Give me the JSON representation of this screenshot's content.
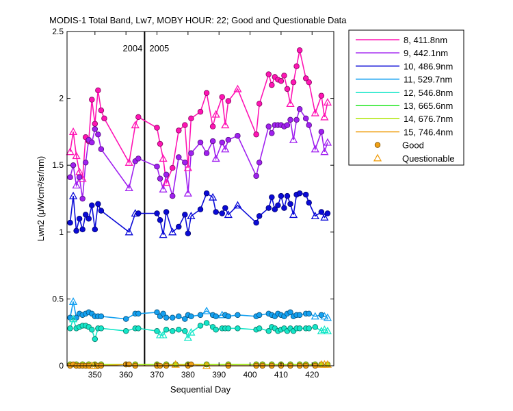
{
  "chart_data": {
    "type": "line",
    "title": "MODIS-1 Total Band, Lw7, MOBY HOUR: 22;  Good and Questionable Data",
    "xlabel": "Sequential Day",
    "ylabel": "Lwn2 (μW/cm²/sr/nm)",
    "xlim": [
      341,
      427
    ],
    "ylim": [
      0,
      2.5
    ],
    "xticks": [
      350,
      360,
      370,
      380,
      390,
      400,
      410,
      420
    ],
    "yticks": [
      0,
      0.5,
      1,
      1.5,
      2,
      2.5
    ],
    "ytick_labels": [
      "0",
      "0.5",
      "1",
      "1.5",
      "2",
      "2.5"
    ],
    "grid": false,
    "legend_position": "outside-right",
    "year_marker": {
      "x": 366,
      "left_label": "2004",
      "right_label": "2005"
    },
    "series": [
      {
        "name": "8, 411.8nm",
        "color": "#ff14b4",
        "x": [
          342,
          343,
          344,
          345,
          346,
          347,
          348,
          349,
          350,
          351,
          352,
          353,
          361,
          363,
          364,
          370,
          371,
          372,
          373,
          375,
          377,
          379,
          380,
          381,
          384,
          386,
          388,
          389,
          391,
          392,
          393,
          396,
          402,
          403,
          406,
          407,
          408,
          409,
          410,
          411,
          412,
          413,
          414,
          415,
          416,
          418,
          419,
          421,
          423,
          424,
          425
        ],
        "y": [
          1.6,
          1.75,
          1.57,
          1.45,
          1.4,
          1.71,
          1.68,
          1.99,
          1.81,
          2.06,
          1.91,
          1.85,
          1.52,
          1.8,
          1.86,
          1.78,
          1.66,
          1.55,
          1.37,
          1.48,
          1.76,
          1.8,
          1.48,
          1.85,
          1.9,
          2.04,
          1.79,
          1.88,
          2.01,
          1.8,
          1.98,
          2.07,
          1.73,
          1.96,
          2.18,
          2.1,
          2.16,
          2.14,
          2.13,
          2.17,
          2.07,
          1.96,
          2.12,
          2.24,
          2.36,
          2.15,
          2.12,
          1.89,
          2.02,
          1.86,
          1.97
        ],
        "q": [
          true,
          true,
          true,
          true,
          true,
          false,
          false,
          false,
          false,
          false,
          false,
          false,
          true,
          true,
          false,
          false,
          false,
          true,
          true,
          false,
          false,
          false,
          true,
          false,
          false,
          false,
          false,
          true,
          false,
          true,
          false,
          true,
          false,
          false,
          false,
          false,
          false,
          false,
          false,
          false,
          false,
          true,
          false,
          false,
          false,
          false,
          false,
          true,
          false,
          true,
          true
        ]
      },
      {
        "name": "9, 442.1nm",
        "color": "#a020f0",
        "x": [
          342,
          343,
          344,
          345,
          346,
          347,
          348,
          349,
          350,
          351,
          352,
          361,
          363,
          364,
          370,
          371,
          372,
          373,
          375,
          377,
          379,
          380,
          381,
          384,
          386,
          388,
          389,
          391,
          392,
          393,
          396,
          402,
          403,
          406,
          407,
          408,
          409,
          410,
          411,
          412,
          413,
          414,
          415,
          416,
          418,
          419,
          421,
          423,
          424,
          425
        ],
        "y": [
          1.41,
          1.5,
          1.35,
          1.41,
          1.25,
          1.52,
          1.69,
          1.67,
          1.77,
          1.73,
          1.62,
          1.33,
          1.53,
          1.55,
          1.49,
          1.4,
          1.32,
          1.43,
          1.27,
          1.56,
          1.52,
          1.29,
          1.59,
          1.67,
          1.59,
          1.68,
          1.55,
          1.67,
          1.62,
          1.69,
          1.72,
          1.42,
          1.52,
          1.79,
          1.74,
          1.8,
          1.8,
          1.8,
          1.79,
          1.8,
          1.84,
          1.69,
          1.84,
          1.92,
          1.85,
          1.8,
          1.62,
          1.75,
          1.6,
          1.67
        ],
        "q": [
          false,
          false,
          true,
          false,
          false,
          false,
          false,
          false,
          false,
          false,
          false,
          true,
          false,
          false,
          false,
          false,
          true,
          false,
          false,
          false,
          false,
          true,
          false,
          false,
          false,
          false,
          true,
          false,
          true,
          false,
          false,
          false,
          false,
          false,
          false,
          false,
          false,
          false,
          false,
          false,
          false,
          true,
          false,
          false,
          false,
          false,
          true,
          false,
          true,
          true
        ]
      },
      {
        "name": "10, 486.9nm",
        "color": "#0a0ad7",
        "x": [
          342,
          343,
          344,
          345,
          346,
          347,
          348,
          349,
          350,
          351,
          352,
          361,
          363,
          364,
          370,
          371,
          372,
          373,
          375,
          377,
          379,
          380,
          381,
          384,
          386,
          388,
          389,
          391,
          392,
          393,
          396,
          402,
          403,
          406,
          407,
          408,
          409,
          410,
          411,
          412,
          413,
          414,
          415,
          416,
          418,
          419,
          421,
          423,
          424,
          425
        ],
        "y": [
          1.07,
          1.27,
          1.01,
          1.1,
          1.02,
          1.13,
          1.1,
          1.2,
          1.02,
          1.21,
          1.16,
          1.0,
          1.14,
          1.14,
          1.14,
          1.09,
          0.98,
          1.15,
          1.0,
          1.04,
          1.13,
          0.99,
          1.12,
          1.17,
          1.29,
          1.26,
          1.15,
          1.14,
          1.18,
          1.13,
          1.2,
          1.07,
          1.12,
          1.18,
          1.26,
          1.17,
          1.2,
          1.27,
          1.18,
          1.27,
          1.21,
          1.13,
          1.28,
          1.29,
          1.28,
          1.22,
          1.12,
          1.15,
          1.11,
          1.14
        ],
        "q": [
          false,
          true,
          false,
          false,
          false,
          false,
          false,
          false,
          false,
          false,
          false,
          true,
          true,
          false,
          false,
          false,
          true,
          false,
          true,
          false,
          false,
          false,
          true,
          false,
          false,
          true,
          false,
          false,
          false,
          true,
          true,
          false,
          false,
          false,
          false,
          false,
          false,
          false,
          false,
          false,
          false,
          true,
          false,
          false,
          false,
          false,
          true,
          false,
          true,
          false
        ]
      },
      {
        "name": "11, 529.7nm",
        "color": "#14a0f0",
        "x": [
          342,
          343,
          344,
          345,
          346,
          347,
          348,
          349,
          350,
          351,
          352,
          360,
          363,
          364,
          370,
          371,
          372,
          373,
          375,
          377,
          379,
          380,
          381,
          384,
          386,
          388,
          389,
          391,
          392,
          393,
          396,
          402,
          403,
          406,
          407,
          408,
          409,
          410,
          411,
          412,
          413,
          414,
          415,
          416,
          418,
          419,
          421,
          423,
          424,
          425
        ],
        "y": [
          0.36,
          0.48,
          0.36,
          0.39,
          0.38,
          0.39,
          0.4,
          0.39,
          0.37,
          0.37,
          0.37,
          0.35,
          0.39,
          0.39,
          0.4,
          0.37,
          0.39,
          0.36,
          0.36,
          0.37,
          0.35,
          0.38,
          0.37,
          0.38,
          0.41,
          0.38,
          0.37,
          0.38,
          0.38,
          0.37,
          0.38,
          0.37,
          0.38,
          0.39,
          0.38,
          0.37,
          0.39,
          0.38,
          0.37,
          0.39,
          0.4,
          0.37,
          0.38,
          0.38,
          0.39,
          0.39,
          0.37,
          0.38,
          0.37,
          0.36
        ],
        "q": [
          false,
          true,
          false,
          false,
          false,
          false,
          false,
          false,
          false,
          false,
          false,
          false,
          false,
          false,
          false,
          false,
          false,
          false,
          false,
          false,
          false,
          false,
          false,
          false,
          true,
          false,
          false,
          true,
          false,
          false,
          false,
          false,
          false,
          false,
          false,
          false,
          false,
          false,
          false,
          false,
          false,
          false,
          false,
          false,
          false,
          false,
          true,
          false,
          true,
          true
        ]
      },
      {
        "name": "12, 546.8nm",
        "color": "#14e6c8",
        "x": [
          342,
          343,
          344,
          345,
          346,
          347,
          348,
          349,
          350,
          351,
          352,
          360,
          363,
          364,
          370,
          371,
          372,
          373,
          375,
          377,
          379,
          380,
          381,
          384,
          386,
          388,
          389,
          391,
          392,
          393,
          396,
          402,
          403,
          406,
          407,
          408,
          409,
          410,
          411,
          412,
          413,
          414,
          415,
          416,
          418,
          419,
          421,
          423,
          424,
          425
        ],
        "y": [
          0.28,
          0.35,
          0.28,
          0.29,
          0.3,
          0.3,
          0.29,
          0.27,
          0.2,
          0.28,
          0.28,
          0.26,
          0.28,
          0.28,
          0.26,
          0.23,
          0.23,
          0.27,
          0.26,
          0.27,
          0.26,
          0.21,
          0.25,
          0.3,
          0.32,
          0.29,
          0.27,
          0.28,
          0.28,
          0.28,
          0.28,
          0.27,
          0.28,
          0.26,
          0.29,
          0.28,
          0.26,
          0.27,
          0.28,
          0.26,
          0.28,
          0.26,
          0.28,
          0.28,
          0.28,
          0.28,
          0.29,
          0.26,
          0.27,
          0.26
        ],
        "q": [
          false,
          true,
          false,
          false,
          false,
          false,
          false,
          false,
          false,
          false,
          false,
          false,
          false,
          false,
          false,
          true,
          true,
          false,
          false,
          false,
          false,
          true,
          true,
          false,
          false,
          false,
          false,
          false,
          false,
          false,
          false,
          false,
          false,
          false,
          false,
          false,
          false,
          false,
          false,
          false,
          false,
          false,
          false,
          false,
          false,
          false,
          false,
          true,
          true,
          true
        ]
      },
      {
        "name": "13, 665.6nm",
        "color": "#1ee61e",
        "x": [
          342,
          344,
          346,
          348,
          350,
          352,
          360,
          363,
          370,
          373,
          376,
          380,
          386,
          393,
          402,
          404,
          407,
          410,
          413,
          416,
          418,
          421,
          423,
          425
        ],
        "y": [
          0.01,
          0.01,
          0.01,
          0.01,
          0.01,
          0.01,
          0.01,
          0.01,
          0.01,
          0.01,
          0.01,
          0.01,
          0.01,
          0.01,
          0.01,
          0.01,
          0.01,
          0.01,
          0.01,
          0.01,
          0.01,
          0.01,
          0.01,
          0.01
        ],
        "q": [
          false,
          false,
          false,
          false,
          false,
          false,
          false,
          false,
          false,
          false,
          false,
          false,
          false,
          false,
          false,
          false,
          false,
          false,
          false,
          false,
          false,
          false,
          false,
          false
        ]
      },
      {
        "name": "14, 676.7nm",
        "color": "#b4e614",
        "x": [
          342,
          344,
          346,
          348,
          350,
          352,
          360,
          363,
          370,
          373,
          376,
          380,
          386,
          393,
          402,
          404,
          407,
          410,
          413,
          416,
          418,
          421,
          423,
          425
        ],
        "y": [
          0.01,
          0.01,
          0.01,
          0.01,
          0.01,
          0.01,
          0.01,
          0.01,
          0.01,
          0.01,
          0.01,
          0.01,
          0.01,
          0.01,
          0.01,
          0.01,
          0.01,
          0.01,
          0.01,
          0.01,
          0.01,
          0.01,
          0.01,
          0.01
        ],
        "q": [
          false,
          false,
          false,
          false,
          false,
          false,
          false,
          false,
          false,
          false,
          false,
          false,
          false,
          false,
          false,
          false,
          false,
          false,
          false,
          false,
          false,
          false,
          false,
          false
        ]
      },
      {
        "name": "15, 746.4nm",
        "color": "#f0a014",
        "x": [
          342,
          343,
          344,
          345,
          346,
          347,
          348,
          349,
          350,
          351,
          352,
          360,
          361,
          363,
          370,
          371,
          373,
          376,
          380,
          381,
          386,
          393,
          402,
          404,
          407,
          410,
          413,
          416,
          418,
          421,
          423,
          424,
          425
        ],
        "y": [
          0.0,
          0.01,
          0.0,
          0.0,
          0.0,
          0.0,
          0.0,
          0.0,
          0.0,
          0.0,
          0.0,
          0.01,
          0.01,
          0.0,
          0.0,
          0.0,
          0.0,
          0.01,
          0.0,
          0.01,
          0.0,
          0.0,
          0.0,
          0.0,
          0.0,
          0.0,
          0.0,
          0.0,
          0.0,
          0.0,
          0.01,
          0.01,
          0.01
        ],
        "q": [
          false,
          false,
          false,
          false,
          false,
          false,
          false,
          true,
          true,
          false,
          false,
          false,
          false,
          false,
          false,
          false,
          false,
          true,
          false,
          false,
          true,
          false,
          false,
          false,
          false,
          false,
          false,
          false,
          false,
          false,
          true,
          true,
          true
        ]
      }
    ],
    "legend_markers": [
      {
        "label": "Good",
        "marker": "circle",
        "color": "#f0a014"
      },
      {
        "label": "Questionable",
        "marker": "triangle",
        "color": "#f0a014"
      }
    ]
  }
}
